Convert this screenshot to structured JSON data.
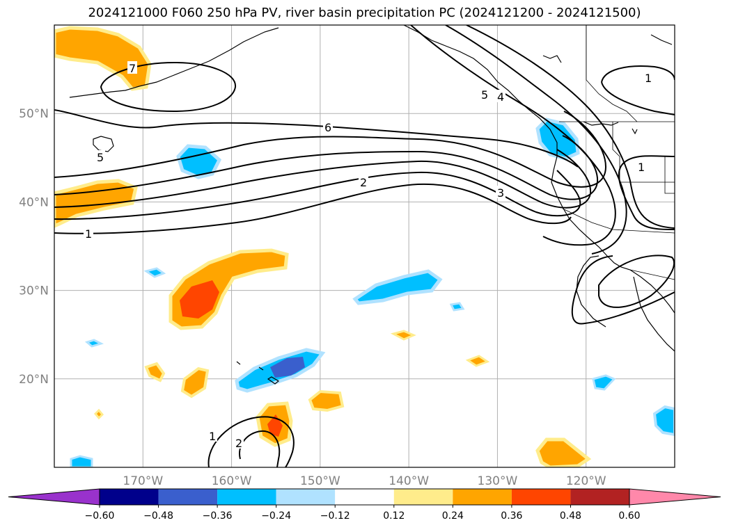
{
  "title": "2024121000 F060 250 hPa PV, river basin precipitation PC (2024121200 - 2024121500)",
  "map": {
    "lon_range": [
      -180,
      -110
    ],
    "lat_range": [
      10,
      60
    ],
    "gridlines": true,
    "lon_ticks": [
      {
        "lon": -170,
        "label": "170°W"
      },
      {
        "lon": -160,
        "label": "160°W"
      },
      {
        "lon": -150,
        "label": "150°W"
      },
      {
        "lon": -140,
        "label": "140°W"
      },
      {
        "lon": -130,
        "label": "130°W"
      },
      {
        "lon": -120,
        "label": "120°W"
      }
    ],
    "lat_ticks": [
      {
        "lat": 20,
        "label": "20°N"
      },
      {
        "lat": 30,
        "label": "30°N"
      },
      {
        "lat": 40,
        "label": "40°N"
      },
      {
        "lat": 50,
        "label": "50°N"
      }
    ],
    "contour_labels": [
      "7",
      "6",
      "5",
      "2",
      "1",
      "3",
      "4",
      "5",
      "1",
      "1",
      "1",
      "2"
    ]
  },
  "colorbar": {
    "extend": "both",
    "colors": [
      "#9932cc",
      "#00008b",
      "#3a5fcd",
      "#00bfff",
      "#b0e2ff",
      "#ffffff",
      "#ffec8b",
      "#ffa500",
      "#ff4500",
      "#b22222",
      "#ff88aa"
    ],
    "tick_labels": [
      "−0.60",
      "−0.48",
      "−0.36",
      "−0.24",
      "−0.12",
      "0.12",
      "0.24",
      "0.36",
      "0.48",
      "0.60"
    ]
  }
}
